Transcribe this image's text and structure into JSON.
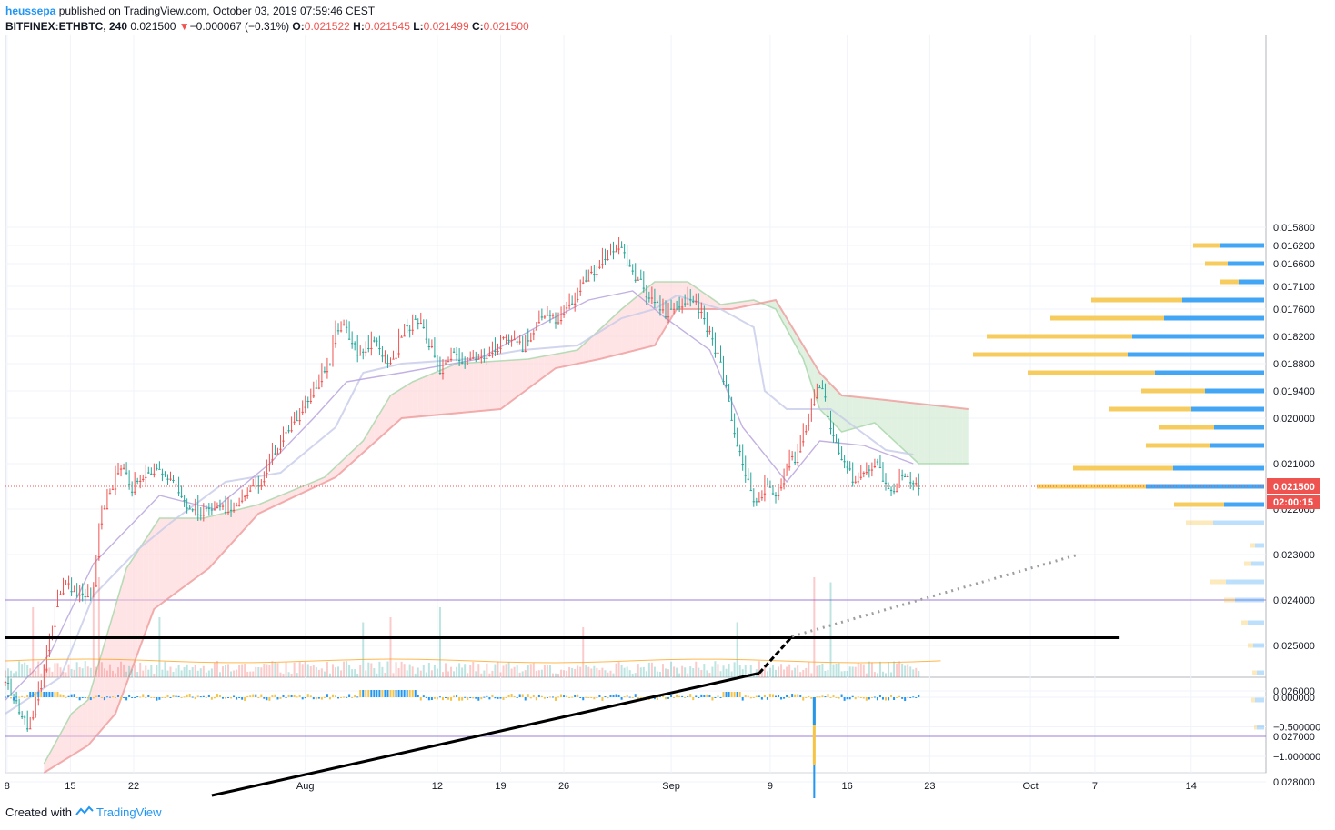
{
  "header": {
    "publisher": "heussepa",
    "published_text": "published on TradingView.com, October 03, 2019 07:59:46 CEST",
    "symbol": "BITFINEX:ETHBTC, 240",
    "last": "0.021500",
    "change_arrow": "▼",
    "change": "−0.000067 (−0.31%)",
    "o_label": "O:",
    "o": "0.021522",
    "h_label": "H:",
    "h": "0.021545",
    "l_label": "L:",
    "l": "0.021499",
    "c_label": "C:",
    "c": "0.021500"
  },
  "price_badge": "0.021500",
  "countdown_badge": "02:00:15",
  "footer": {
    "created_with": "Created with",
    "brand": "TradingView"
  },
  "colors": {
    "up": "#26a69a",
    "down": "#ef5350",
    "accent": "#2196f3",
    "volume_profile_sell": "#f6c343",
    "volume_profile_buy": "#2196f3"
  },
  "chart_data": {
    "type": "candlestick",
    "price_axis_ticks": [
      "0.028000",
      "0.027000",
      "0.026000",
      "0.025000",
      "0.024000",
      "0.023000",
      "0.022000",
      "0.021000",
      "0.020000",
      "0.019400",
      "0.018800",
      "0.018200",
      "0.017600",
      "0.017100",
      "0.016600",
      "0.016200",
      "0.015800"
    ],
    "indicator_axis_ticks": [
      "0.000000",
      "−0.500000",
      "−1.000000"
    ],
    "time_axis_ticks": [
      "8",
      "15",
      "22",
      "Aug",
      "12",
      "19",
      "26",
      "Sep",
      "9",
      "16",
      "23",
      "Oct",
      "7",
      "14"
    ],
    "price_path": [
      [
        0,
        0.0258
      ],
      [
        4,
        0.0268
      ],
      [
        7,
        0.0256
      ],
      [
        9,
        0.0241
      ],
      [
        11,
        0.0236
      ],
      [
        13,
        0.0239
      ],
      [
        16,
        0.0238
      ],
      [
        17,
        0.0222
      ],
      [
        19,
        0.0216
      ],
      [
        21,
        0.021
      ],
      [
        23,
        0.0215
      ],
      [
        25,
        0.0212
      ],
      [
        29,
        0.0212
      ],
      [
        33,
        0.0219
      ],
      [
        37,
        0.0221
      ],
      [
        41,
        0.0219
      ],
      [
        46,
        0.0214
      ],
      [
        49,
        0.0207
      ],
      [
        52,
        0.0201
      ],
      [
        56,
        0.0194
      ],
      [
        59,
        0.0187
      ],
      [
        60,
        0.018
      ],
      [
        62,
        0.018
      ],
      [
        64,
        0.0186
      ],
      [
        67,
        0.0183
      ],
      [
        70,
        0.0188
      ],
      [
        72,
        0.0181
      ],
      [
        75,
        0.0178
      ],
      [
        77,
        0.0183
      ],
      [
        79,
        0.0189
      ],
      [
        81,
        0.0186
      ],
      [
        84,
        0.0188
      ],
      [
        87,
        0.0186
      ],
      [
        90,
        0.0183
      ],
      [
        94,
        0.0184
      ],
      [
        97,
        0.0177
      ],
      [
        100,
        0.0178
      ],
      [
        103,
        0.0174
      ],
      [
        106,
        0.0168
      ],
      [
        108,
        0.0166
      ],
      [
        110,
        0.0163
      ],
      [
        112,
        0.0162
      ],
      [
        114,
        0.0168
      ],
      [
        117,
        0.0173
      ],
      [
        120,
        0.0177
      ],
      [
        122,
        0.0175
      ],
      [
        125,
        0.0173
      ],
      [
        128,
        0.0181
      ],
      [
        130,
        0.0188
      ],
      [
        132,
        0.02
      ],
      [
        134,
        0.021
      ],
      [
        136,
        0.0219
      ],
      [
        138,
        0.0215
      ],
      [
        140,
        0.0217
      ],
      [
        142,
        0.021
      ],
      [
        144,
        0.0208
      ],
      [
        146,
        0.02
      ],
      [
        148,
        0.0192
      ],
      [
        150,
        0.0201
      ],
      [
        152,
        0.0209
      ],
      [
        154,
        0.0213
      ],
      [
        156,
        0.0212
      ],
      [
        158,
        0.0209
      ],
      [
        161,
        0.0217
      ],
      [
        163,
        0.0212
      ],
      [
        166,
        0.0215
      ]
    ],
    "ichimoku": {
      "span_a": [
        [
          7,
          0.0276
        ],
        [
          12,
          0.0265
        ],
        [
          15,
          0.0262
        ],
        [
          22,
          0.0233
        ],
        [
          28,
          0.0222
        ],
        [
          36,
          0.0222
        ],
        [
          46,
          0.0219
        ],
        [
          58,
          0.0213
        ],
        [
          65,
          0.0205
        ],
        [
          70,
          0.0195
        ],
        [
          74,
          0.0192
        ],
        [
          82,
          0.0188
        ],
        [
          95,
          0.0187
        ],
        [
          104,
          0.0185
        ],
        [
          112,
          0.0176
        ],
        [
          118,
          0.017
        ],
        [
          124,
          0.017
        ],
        [
          130,
          0.0175
        ],
        [
          136,
          0.0174
        ],
        [
          140,
          0.0176
        ],
        [
          145,
          0.0187
        ],
        [
          148,
          0.0198
        ],
        [
          152,
          0.0203
        ],
        [
          158,
          0.0201
        ],
        [
          166,
          0.021
        ],
        [
          175,
          0.021
        ]
      ],
      "span_b": [
        [
          7,
          0.0278
        ],
        [
          15,
          0.0272
        ],
        [
          20,
          0.0265
        ],
        [
          27,
          0.0242
        ],
        [
          37,
          0.0233
        ],
        [
          46,
          0.0221
        ],
        [
          60,
          0.0213
        ],
        [
          72,
          0.02
        ],
        [
          90,
          0.0198
        ],
        [
          100,
          0.0189
        ],
        [
          108,
          0.0187
        ],
        [
          118,
          0.0184
        ],
        [
          122,
          0.0176
        ],
        [
          132,
          0.0176
        ],
        [
          140,
          0.0174
        ],
        [
          148,
          0.019
        ],
        [
          152,
          0.0195
        ],
        [
          160,
          0.0196
        ],
        [
          175,
          0.0198
        ]
      ],
      "kijun": [
        [
          0,
          0.0265
        ],
        [
          10,
          0.0257
        ],
        [
          16,
          0.0239
        ],
        [
          24,
          0.0229
        ],
        [
          30,
          0.0223
        ],
        [
          40,
          0.0214
        ],
        [
          50,
          0.0212
        ],
        [
          60,
          0.0202
        ],
        [
          65,
          0.019
        ],
        [
          72,
          0.0188
        ],
        [
          84,
          0.0187
        ],
        [
          94,
          0.0185
        ],
        [
          104,
          0.0184
        ],
        [
          112,
          0.0178
        ],
        [
          118,
          0.0176
        ],
        [
          122,
          0.0173
        ],
        [
          130,
          0.0176
        ],
        [
          136,
          0.018
        ],
        [
          138,
          0.0194
        ],
        [
          142,
          0.0198
        ],
        [
          150,
          0.0198
        ],
        [
          160,
          0.0207
        ],
        [
          165,
          0.0208
        ]
      ],
      "tenkan": [
        [
          0,
          0.0262
        ],
        [
          8,
          0.0252
        ],
        [
          16,
          0.0232
        ],
        [
          28,
          0.0217
        ],
        [
          38,
          0.022
        ],
        [
          48,
          0.021
        ],
        [
          56,
          0.02
        ],
        [
          62,
          0.0192
        ],
        [
          72,
          0.019
        ],
        [
          86,
          0.0187
        ],
        [
          98,
          0.0179
        ],
        [
          106,
          0.0174
        ],
        [
          114,
          0.0172
        ],
        [
          120,
          0.0178
        ],
        [
          128,
          0.0185
        ],
        [
          134,
          0.0202
        ],
        [
          142,
          0.0214
        ],
        [
          148,
          0.0205
        ],
        [
          156,
          0.0206
        ],
        [
          165,
          0.021
        ]
      ]
    },
    "zone": {
      "top": 0.027,
      "bottom": 0.024
    },
    "horizontal_line": 0.02483,
    "trendline": {
      "from": [
        37.5,
        0.0283
      ],
      "to": [
        143,
        0.0248
      ],
      "extended_to": [
        195,
        0.023
      ]
    },
    "volume_profile": {
      "rows": [
        [
          0.0268,
          3,
          8
        ],
        [
          0.0262,
          4,
          10
        ],
        [
          0.0256,
          5,
          8
        ],
        [
          0.025,
          6,
          12
        ],
        [
          0.0245,
          7,
          18
        ],
        [
          0.024,
          12,
          32
        ],
        [
          0.0236,
          18,
          42
        ],
        [
          0.0232,
          8,
          14
        ],
        [
          0.0228,
          6,
          10
        ],
        [
          0.0223,
          30,
          56
        ],
        [
          0.0219,
          55,
          44
        ],
        [
          0.0215,
          120,
          130
        ],
        [
          0.0211,
          110,
          100
        ],
        [
          0.0206,
          70,
          60
        ],
        [
          0.0202,
          60,
          55
        ],
        [
          0.0198,
          90,
          80
        ],
        [
          0.0194,
          70,
          65
        ],
        [
          0.019,
          140,
          120
        ],
        [
          0.0186,
          170,
          150
        ],
        [
          0.0182,
          160,
          145
        ],
        [
          0.0178,
          125,
          110
        ],
        [
          0.0174,
          100,
          90
        ],
        [
          0.017,
          20,
          28
        ],
        [
          0.0166,
          25,
          40
        ],
        [
          0.0162,
          30,
          48
        ]
      ]
    },
    "volume_spikes": [
      [
        5,
        0.7
      ],
      [
        16,
        0.9
      ],
      [
        17,
        1.0
      ],
      [
        28,
        0.6
      ],
      [
        65,
        0.55
      ],
      [
        70,
        0.6
      ],
      [
        79,
        0.7
      ],
      [
        105,
        0.5
      ],
      [
        133,
        0.55
      ],
      [
        147,
        1.0
      ],
      [
        150,
        0.95
      ]
    ],
    "indicator_spike": {
      "x": 147,
      "value": -1.15
    }
  }
}
